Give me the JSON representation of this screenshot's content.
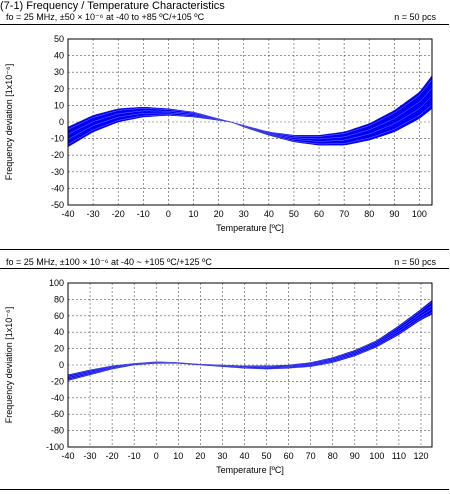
{
  "page": {
    "title": "(7-1) Frequency / Temperature Characteristics"
  },
  "chart_data": [
    {
      "type": "area",
      "condition": "fo = 25 MHz, ±50 × 10⁻⁶ at -40 to +85 ºC/+105 ºC",
      "sample_label": "n = 50 pcs",
      "xlabel": "Temperature [ºC]",
      "ylabel": "Frequency deviation [1x10⁻⁶]",
      "xlim": [
        -40,
        105
      ],
      "ylim": [
        -50,
        50
      ],
      "x_ticks": [
        -40,
        -30,
        -20,
        -10,
        0,
        10,
        20,
        30,
        40,
        50,
        60,
        70,
        80,
        90,
        100
      ],
      "y_ticks": [
        -50,
        -40,
        -30,
        -20,
        -10,
        0,
        10,
        20,
        30,
        40,
        50
      ],
      "grid": true,
      "band_color": "#0000ff",
      "series": [
        {
          "x": [
            -40,
            -30,
            -20,
            -10,
            0,
            10,
            20,
            25,
            30,
            40,
            50,
            60,
            70,
            80,
            90,
            100,
            105
          ],
          "y": [
            -3,
            4,
            8,
            9,
            8,
            6,
            2,
            0,
            -2,
            -6,
            -8,
            -8,
            -6,
            -1,
            7,
            18,
            28
          ]
        },
        {
          "x": [
            -40,
            -30,
            -20,
            -10,
            0,
            10,
            20,
            25,
            30,
            40,
            50,
            60,
            70,
            80,
            90,
            100,
            105
          ],
          "y": [
            -15,
            -6,
            0,
            3,
            4,
            3,
            1,
            0,
            -3,
            -8,
            -12,
            -14,
            -14,
            -11,
            -6,
            2,
            8
          ]
        }
      ]
    },
    {
      "type": "area",
      "condition": "fo = 25 MHz, ±100 × 10⁻⁶ at -40 ~ +105 ºC/+125 ºC",
      "sample_label": "n = 50 pcs",
      "xlabel": "Temperature [ºC]",
      "ylabel": "Frequency deviation [1x10⁻⁶]",
      "xlim": [
        -40,
        125
      ],
      "ylim": [
        -100,
        100
      ],
      "x_ticks": [
        -40,
        -30,
        -20,
        -10,
        0,
        10,
        20,
        30,
        40,
        50,
        60,
        70,
        80,
        90,
        100,
        110,
        120
      ],
      "y_ticks": [
        -100,
        -80,
        -60,
        -40,
        -20,
        0,
        20,
        40,
        60,
        80,
        100
      ],
      "grid": true,
      "band_color": "#0000ff",
      "series": [
        {
          "x": [
            -40,
            -30,
            -20,
            -10,
            0,
            10,
            20,
            30,
            40,
            50,
            60,
            70,
            80,
            90,
            100,
            110,
            120,
            125
          ],
          "y": [
            -12,
            -6,
            -1,
            2,
            4,
            3,
            1,
            0,
            -1,
            -1,
            0,
            3,
            9,
            18,
            30,
            48,
            68,
            79
          ]
        },
        {
          "x": [
            -40,
            -30,
            -20,
            -10,
            0,
            10,
            20,
            30,
            40,
            50,
            60,
            70,
            80,
            90,
            100,
            110,
            120,
            125
          ],
          "y": [
            -19,
            -12,
            -5,
            0,
            2,
            2,
            0,
            -2,
            -4,
            -5,
            -4,
            -2,
            3,
            11,
            22,
            37,
            55,
            62
          ]
        }
      ]
    }
  ]
}
